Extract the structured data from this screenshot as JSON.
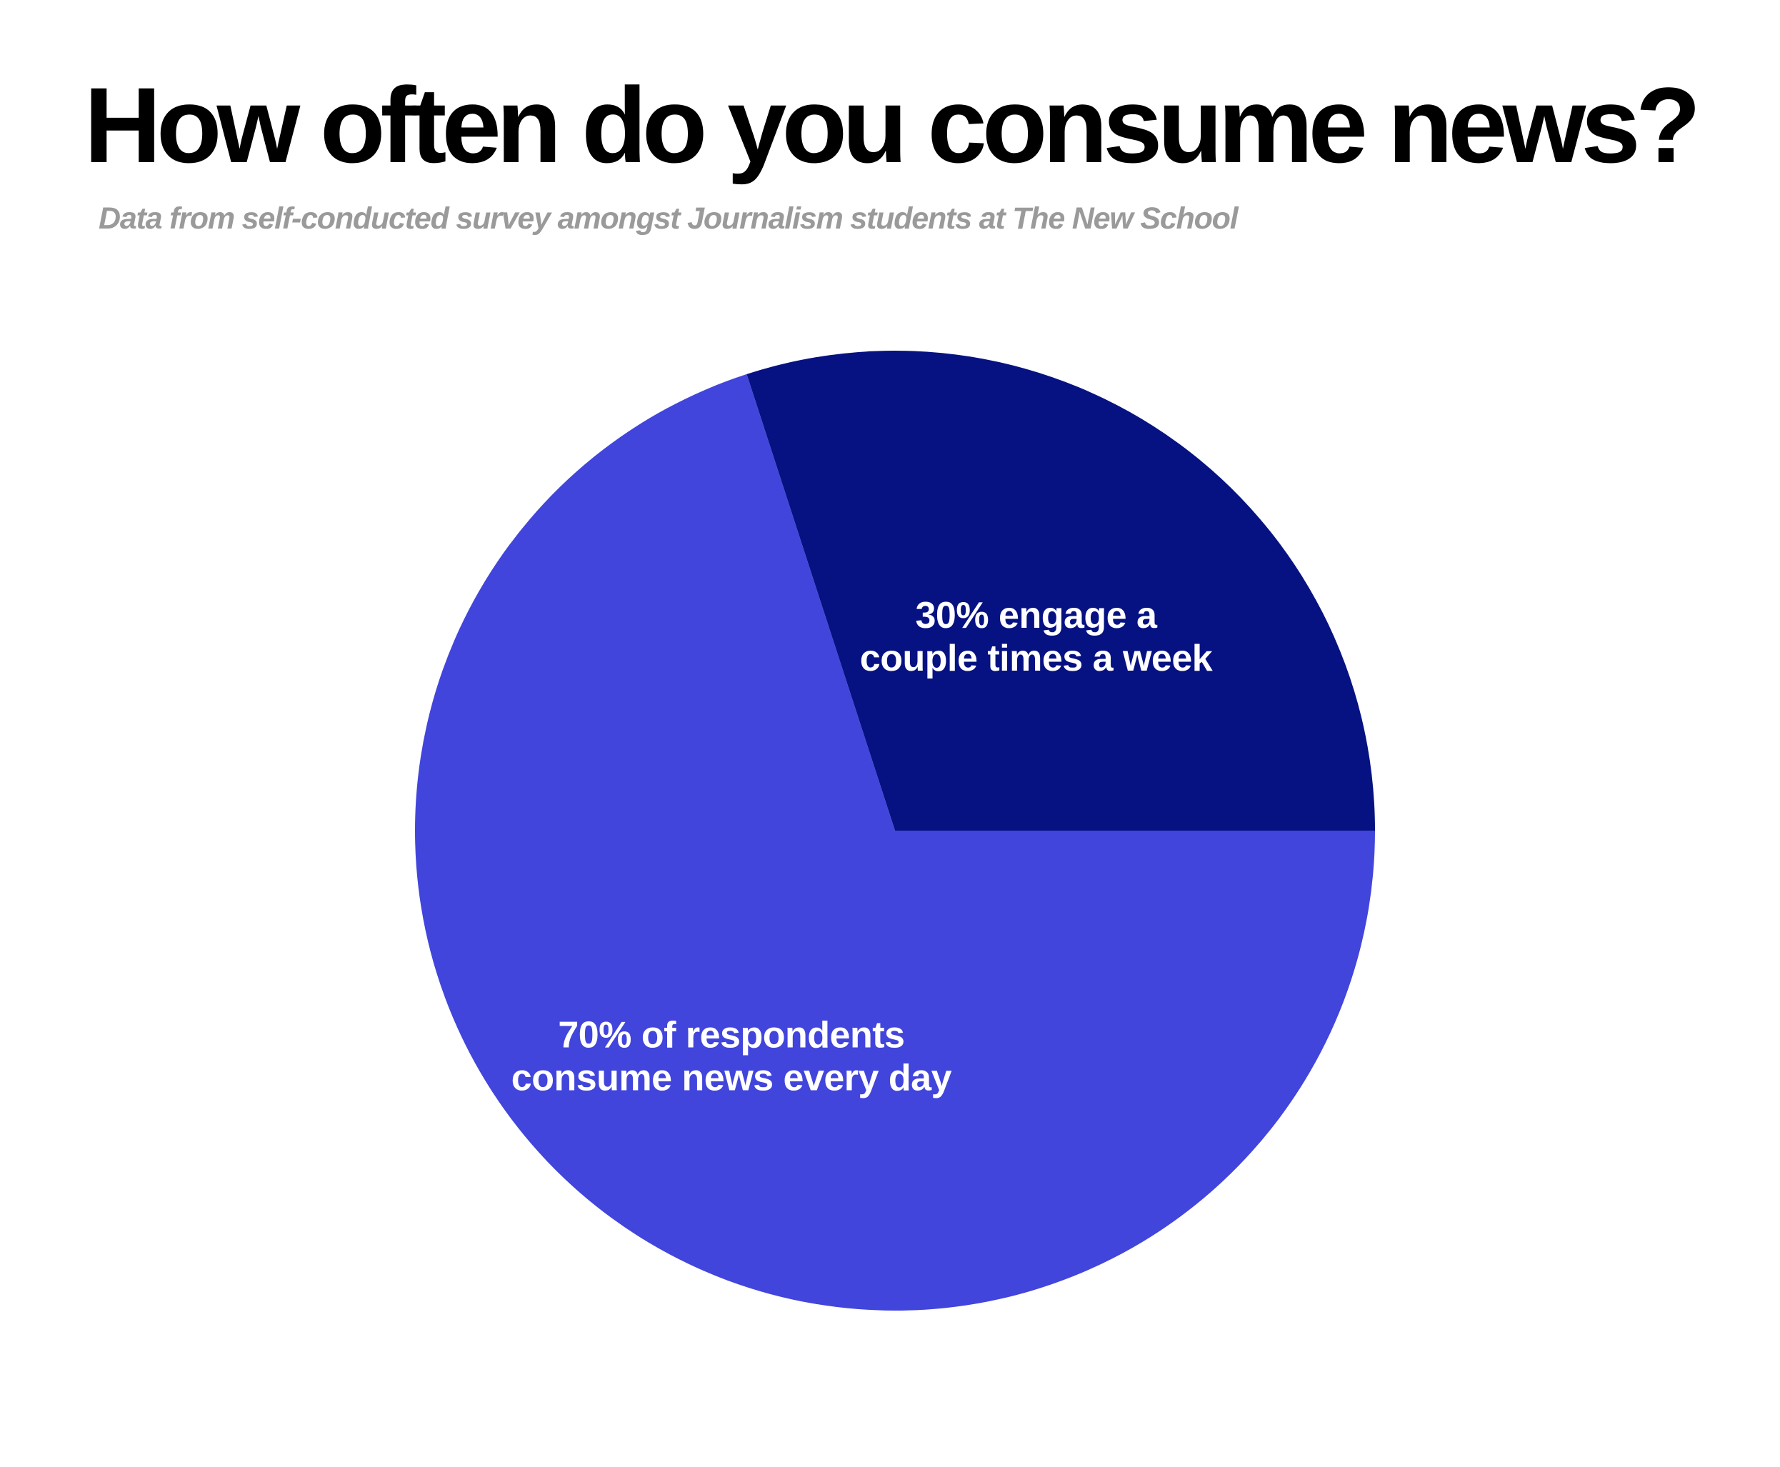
{
  "title": "How often do you consume news?",
  "subtitle": "Data from self-conducted survey amongst Journalism students at The New School",
  "chart_data": {
    "type": "pie",
    "title": "How often do you consume news?",
    "subtitle": "Data from self-conducted survey amongst Journalism students at The New School",
    "unit": "%",
    "slices": [
      {
        "name": "couple times a week",
        "value": 30,
        "color": "#061282",
        "label_lines": [
          "30% engage a",
          "couple times a week"
        ]
      },
      {
        "name": "every day",
        "value": 70,
        "color": "#4145DB",
        "label_lines": [
          "70% of respondents",
          "consume news every day"
        ]
      }
    ],
    "legend": "none"
  },
  "colors": {
    "background": "#FFFFFF",
    "title": "#000000",
    "subtitle": "#9A9A9A",
    "label": "#FFFFFF"
  }
}
